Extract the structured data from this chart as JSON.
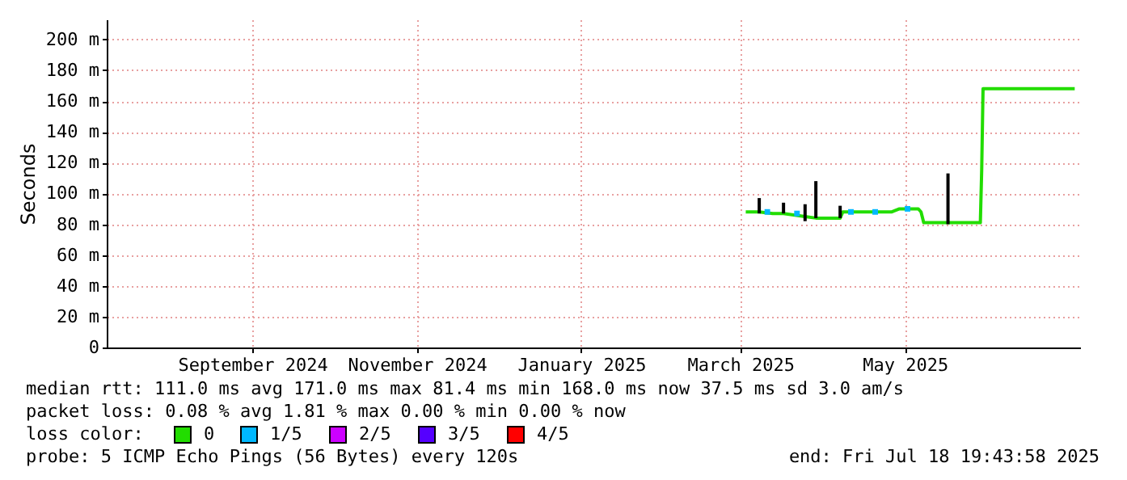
{
  "chart_data": {
    "type": "line",
    "ylabel": "Seconds",
    "xlim": [
      "2024-07-24",
      "2025-07-20"
    ],
    "xticks": [
      {
        "value": "2024-09-16",
        "label": "September 2024"
      },
      {
        "value": "2024-11-16",
        "label": "November 2024"
      },
      {
        "value": "2025-01-16",
        "label": "January 2025"
      },
      {
        "value": "2025-03-16",
        "label": "March 2025"
      },
      {
        "value": "2025-05-16",
        "label": "May 2025"
      }
    ],
    "ylim": [
      0,
      213
    ],
    "yticks": [
      0,
      {
        "value": 20,
        "label": "20 m"
      },
      {
        "value": 40,
        "label": "40 m"
      },
      {
        "value": 60,
        "label": "60 m"
      },
      {
        "value": 80,
        "label": "80 m"
      },
      {
        "value": 100,
        "label": "100 m"
      },
      {
        "value": 120,
        "label": "120 m"
      },
      {
        "value": 140,
        "label": "140 m"
      },
      {
        "value": 160,
        "label": "160 m"
      },
      {
        "value": 180,
        "label": "180 m"
      },
      {
        "value": 200,
        "label": "200 m"
      }
    ],
    "grid": true,
    "legend": "bottom",
    "legend_title": "loss color:",
    "series": [
      {
        "type": "bar",
        "color": "#000000",
        "x": [
          "2025-03-23",
          "2025-04-01",
          "2025-04-09",
          "2025-04-13",
          "2025-04-22",
          "2025-06-01"
        ],
        "base": [
          87,
          87,
          82,
          84,
          84,
          80
        ],
        "values": [
          10,
          7,
          11,
          24,
          8,
          33
        ]
      },
      {
        "name": "0",
        "color": "#22dd00",
        "x": [
          "2025-03-18",
          "2025-03-23",
          "2025-03-28",
          "2025-04-01",
          "2025-04-09",
          "2025-04-13",
          "2025-04-22",
          "2025-04-23",
          "2025-05-11",
          "2025-05-14",
          "2025-05-21",
          "2025-05-22",
          "2025-05-23",
          "2025-06-13",
          "2025-06-13T12:00",
          "2025-06-14",
          "2025-07-01",
          "2025-07-18"
        ],
        "values": [
          88,
          88,
          87,
          87,
          85,
          84,
          84,
          88,
          88,
          90,
          90,
          88,
          81,
          81,
          115,
          168,
          168,
          168
        ]
      },
      {
        "name": "1/5",
        "type": "scatter",
        "marker": "square",
        "color": "#00b8ff",
        "x": [
          "2025-03-26",
          "2025-04-06",
          "2025-04-26",
          "2025-05-05",
          "2025-05-17"
        ],
        "values": [
          88,
          87,
          88,
          88,
          90
        ]
      },
      {
        "name": "2/5",
        "type": "scatter",
        "marker": "square",
        "color": "#cc00ff"
      },
      {
        "name": "3/5",
        "type": "scatter",
        "marker": "square",
        "color": "#5500ff"
      },
      {
        "name": "4/5",
        "type": "scatter",
        "marker": "square",
        "color": "#ff0000"
      }
    ],
    "annotations": [
      "median rtt:  111.0 ms avg  171.0 ms max  81.4 ms min  168.0 ms now  37.5 ms sd  3.0   am/s",
      "packet loss: 0.08 % avg  1.81 % max  0.00 % min  0.00 % now",
      "probe:       5 ICMP Echo Pings (56 Bytes) every 120s",
      "end: Fri Jul 18 19:43:58 2025"
    ]
  }
}
